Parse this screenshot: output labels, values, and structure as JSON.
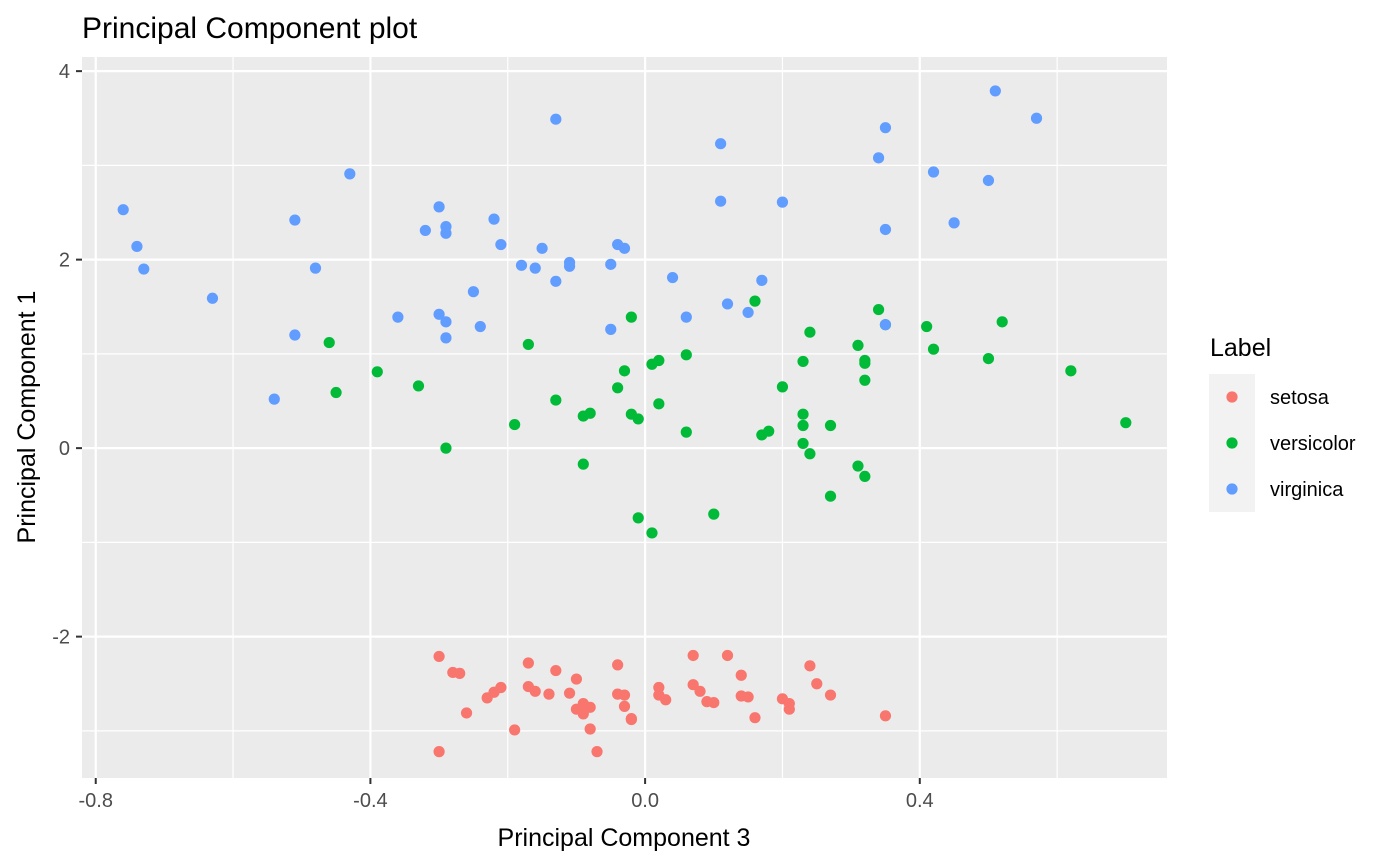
{
  "chart_data": {
    "type": "scatter",
    "title": "Principal Component plot",
    "xlabel": "Principal Component 3",
    "ylabel": "Principal Component 1",
    "xlim": [
      -0.82,
      0.76
    ],
    "ylim": [
      -3.5,
      4.15
    ],
    "x_ticks": [
      -0.8,
      -0.4,
      0.0,
      0.4
    ],
    "x_tick_labels": [
      "-0.8",
      "-0.4",
      "0.0",
      "0.4"
    ],
    "y_ticks": [
      -2,
      0,
      2,
      4
    ],
    "y_tick_labels": [
      "-2",
      "0",
      "2",
      "4"
    ],
    "grid": true,
    "legend": {
      "title": "Label",
      "position": "right"
    },
    "series": [
      {
        "name": "setosa",
        "color": "#F8766D",
        "points": [
          [
            -0.3,
            -2.21
          ],
          [
            -0.28,
            -2.38
          ],
          [
            -0.27,
            -2.39
          ],
          [
            -0.26,
            -2.81
          ],
          [
            -0.3,
            -3.22
          ],
          [
            -0.23,
            -2.65
          ],
          [
            -0.22,
            -2.59
          ],
          [
            -0.21,
            -2.54
          ],
          [
            -0.19,
            -2.99
          ],
          [
            -0.17,
            -2.28
          ],
          [
            -0.17,
            -2.53
          ],
          [
            -0.16,
            -2.58
          ],
          [
            -0.14,
            -2.61
          ],
          [
            -0.13,
            -2.36
          ],
          [
            -0.11,
            -2.6
          ],
          [
            -0.1,
            -2.45
          ],
          [
            -0.1,
            -2.77
          ],
          [
            -0.09,
            -2.71
          ],
          [
            -0.09,
            -2.82
          ],
          [
            -0.08,
            -2.75
          ],
          [
            -0.08,
            -2.98
          ],
          [
            -0.07,
            -3.22
          ],
          [
            -0.04,
            -2.3
          ],
          [
            -0.04,
            -2.61
          ],
          [
            -0.03,
            -2.74
          ],
          [
            -0.03,
            -2.62
          ],
          [
            -0.02,
            -2.88
          ],
          [
            -0.02,
            -2.87
          ],
          [
            0.02,
            -2.54
          ],
          [
            0.02,
            -2.62
          ],
          [
            0.03,
            -2.67
          ],
          [
            0.07,
            -2.2
          ],
          [
            0.07,
            -2.51
          ],
          [
            0.08,
            -2.58
          ],
          [
            0.09,
            -2.69
          ],
          [
            0.1,
            -2.7
          ],
          [
            0.12,
            -2.2
          ],
          [
            0.14,
            -2.63
          ],
          [
            0.14,
            -2.41
          ],
          [
            0.15,
            -2.64
          ],
          [
            0.16,
            -2.86
          ],
          [
            0.2,
            -2.66
          ],
          [
            0.21,
            -2.77
          ],
          [
            0.21,
            -2.71
          ],
          [
            0.24,
            -2.31
          ],
          [
            0.25,
            -2.5
          ],
          [
            0.27,
            -2.62
          ],
          [
            0.35,
            -2.84
          ]
        ]
      },
      {
        "name": "versicolor",
        "color": "#00BA38",
        "points": [
          [
            -0.46,
            1.12
          ],
          [
            -0.45,
            0.59
          ],
          [
            -0.39,
            0.81
          ],
          [
            -0.33,
            0.66
          ],
          [
            -0.29,
            0.0
          ],
          [
            -0.19,
            0.25
          ],
          [
            -0.17,
            1.1
          ],
          [
            -0.13,
            0.51
          ],
          [
            -0.09,
            -0.17
          ],
          [
            -0.09,
            0.34
          ],
          [
            -0.08,
            0.37
          ],
          [
            -0.04,
            0.64
          ],
          [
            -0.03,
            0.82
          ],
          [
            -0.02,
            1.39
          ],
          [
            -0.02,
            0.36
          ],
          [
            -0.01,
            0.31
          ],
          [
            -0.01,
            -0.74
          ],
          [
            0.01,
            0.89
          ],
          [
            0.01,
            -0.9
          ],
          [
            0.02,
            0.93
          ],
          [
            0.02,
            0.47
          ],
          [
            0.06,
            0.17
          ],
          [
            0.06,
            0.99
          ],
          [
            0.1,
            -0.7
          ],
          [
            0.16,
            1.56
          ],
          [
            0.17,
            0.14
          ],
          [
            0.18,
            0.18
          ],
          [
            0.2,
            0.65
          ],
          [
            0.23,
            0.92
          ],
          [
            0.23,
            0.24
          ],
          [
            0.23,
            0.36
          ],
          [
            0.23,
            0.05
          ],
          [
            0.24,
            1.23
          ],
          [
            0.24,
            -0.06
          ],
          [
            0.27,
            0.24
          ],
          [
            0.27,
            -0.51
          ],
          [
            0.31,
            1.09
          ],
          [
            0.31,
            -0.19
          ],
          [
            0.32,
            0.93
          ],
          [
            0.32,
            0.9
          ],
          [
            0.32,
            0.72
          ],
          [
            0.32,
            -0.3
          ],
          [
            0.34,
            1.47
          ],
          [
            0.35,
            1.31
          ],
          [
            0.41,
            1.29
          ],
          [
            0.42,
            1.05
          ],
          [
            0.5,
            0.95
          ],
          [
            0.52,
            1.34
          ],
          [
            0.62,
            0.82
          ],
          [
            0.7,
            0.27
          ]
        ]
      },
      {
        "name": "virginica",
        "color": "#619CFF",
        "points": [
          [
            -0.76,
            2.53
          ],
          [
            -0.74,
            2.14
          ],
          [
            -0.73,
            1.9
          ],
          [
            -0.63,
            1.59
          ],
          [
            -0.54,
            0.52
          ],
          [
            -0.51,
            1.2
          ],
          [
            -0.51,
            2.42
          ],
          [
            -0.48,
            1.91
          ],
          [
            -0.43,
            2.91
          ],
          [
            -0.36,
            1.39
          ],
          [
            -0.32,
            2.31
          ],
          [
            -0.3,
            2.56
          ],
          [
            -0.3,
            1.42
          ],
          [
            -0.29,
            2.35
          ],
          [
            -0.29,
            2.28
          ],
          [
            -0.29,
            1.34
          ],
          [
            -0.29,
            1.17
          ],
          [
            -0.25,
            1.66
          ],
          [
            -0.24,
            1.29
          ],
          [
            -0.22,
            2.43
          ],
          [
            -0.21,
            2.16
          ],
          [
            -0.18,
            1.94
          ],
          [
            -0.16,
            1.91
          ],
          [
            -0.15,
            2.12
          ],
          [
            -0.13,
            3.49
          ],
          [
            -0.13,
            1.77
          ],
          [
            -0.11,
            1.93
          ],
          [
            -0.11,
            1.97
          ],
          [
            -0.05,
            1.95
          ],
          [
            -0.05,
            1.26
          ],
          [
            -0.04,
            2.16
          ],
          [
            -0.03,
            2.12
          ],
          [
            0.04,
            1.81
          ],
          [
            0.06,
            1.39
          ],
          [
            0.11,
            2.62
          ],
          [
            0.11,
            3.23
          ],
          [
            0.12,
            1.53
          ],
          [
            0.15,
            1.44
          ],
          [
            0.17,
            1.78
          ],
          [
            0.2,
            2.61
          ],
          [
            0.34,
            3.08
          ],
          [
            0.35,
            3.4
          ],
          [
            0.35,
            2.32
          ],
          [
            0.35,
            1.31
          ],
          [
            0.42,
            2.93
          ],
          [
            0.45,
            2.39
          ],
          [
            0.5,
            2.84
          ],
          [
            0.51,
            3.79
          ],
          [
            0.57,
            3.5
          ]
        ]
      }
    ]
  }
}
